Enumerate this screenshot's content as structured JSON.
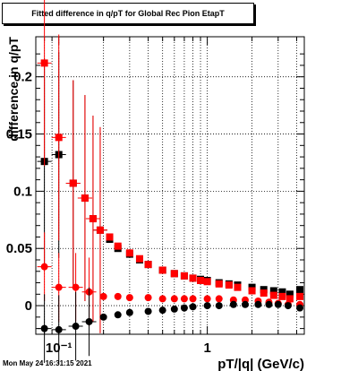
{
  "chart_data": {
    "type": "scatter",
    "title": "Fitted difference in q/pT for Global Rec Pion EtapT",
    "xlabel": "pT/|q| (GeV/c)",
    "ylabel": "difference in q/pT",
    "xscale": "log",
    "xlim": [
      0.07,
      4.5
    ],
    "ylim": [
      -0.025,
      0.235
    ],
    "x_ticks": [
      {
        "value": 0.1,
        "label": "10⁻¹"
      },
      {
        "value": 1,
        "label": "1"
      }
    ],
    "y_ticks": [
      {
        "value": 0,
        "label": "0"
      },
      {
        "value": 0.05,
        "label": "0.05"
      },
      {
        "value": 0.1,
        "label": "0.1"
      },
      {
        "value": 0.15,
        "label": "0.15"
      },
      {
        "value": 0.2,
        "label": "0.2"
      }
    ],
    "grid": true,
    "timestamp": "Mon May 24 16:31:15 2021",
    "series": [
      {
        "marker": "square",
        "color": "#000000",
        "x": [
          0.08,
          0.1,
          0.125,
          0.15,
          0.17,
          0.19,
          0.22,
          0.25,
          0.3,
          0.35,
          0.4,
          0.5,
          0.6,
          0.7,
          0.8,
          0.9,
          1.0,
          1.2,
          1.4,
          1.6,
          2.0,
          2.4,
          2.8,
          3.2,
          3.6,
          4.2
        ],
        "y": [
          0.126,
          0.132,
          0.107,
          0.094,
          0.076,
          0.066,
          0.058,
          0.05,
          0.045,
          0.04,
          0.036,
          0.031,
          0.028,
          0.026,
          0.024,
          0.023,
          0.022,
          0.02,
          0.019,
          0.018,
          0.016,
          0.014,
          0.013,
          0.012,
          0.01,
          0.014
        ]
      },
      {
        "marker": "square",
        "color": "#ff0000",
        "x": [
          0.08,
          0.1,
          0.125,
          0.15,
          0.17,
          0.19,
          0.22,
          0.25,
          0.3,
          0.35,
          0.4,
          0.5,
          0.6,
          0.7,
          0.8,
          0.9,
          1.0,
          1.2,
          1.4,
          1.6,
          2.0,
          2.4,
          2.8,
          3.2,
          3.6,
          4.2
        ],
        "y": [
          0.212,
          0.147,
          0.107,
          0.094,
          0.076,
          0.066,
          0.06,
          0.052,
          0.046,
          0.041,
          0.036,
          0.031,
          0.028,
          0.026,
          0.024,
          0.022,
          0.021,
          0.019,
          0.018,
          0.016,
          0.013,
          0.011,
          0.009,
          0.008,
          0.006,
          0.008
        ]
      },
      {
        "marker": "circle",
        "color": "#ff0000",
        "x": [
          0.08,
          0.1,
          0.13,
          0.16,
          0.2,
          0.25,
          0.3,
          0.4,
          0.5,
          0.6,
          0.7,
          0.8,
          1.0,
          1.2,
          1.5,
          1.8,
          2.2,
          2.6,
          3.0,
          3.5,
          4.2
        ],
        "y": [
          0.034,
          0.016,
          0.016,
          0.012,
          0.008,
          0.008,
          0.007,
          0.007,
          0.006,
          0.006,
          0.006,
          0.006,
          0.006,
          0.006,
          0.005,
          0.005,
          0.004,
          0.003,
          0.002,
          0.001,
          0.001
        ]
      },
      {
        "marker": "circle",
        "color": "#000000",
        "x": [
          0.08,
          0.1,
          0.13,
          0.16,
          0.2,
          0.25,
          0.3,
          0.4,
          0.5,
          0.6,
          0.7,
          0.8,
          1.0,
          1.2,
          1.5,
          1.8,
          2.2,
          2.6,
          3.0,
          3.5,
          4.2
        ],
        "y": [
          -0.02,
          -0.021,
          -0.018,
          -0.014,
          -0.01,
          -0.008,
          -0.006,
          -0.005,
          -0.004,
          -0.003,
          -0.002,
          -0.001,
          0.0,
          0.0,
          0.001,
          0.001,
          0.001,
          0.001,
          0.001,
          0.0,
          -0.002
        ]
      }
    ]
  }
}
